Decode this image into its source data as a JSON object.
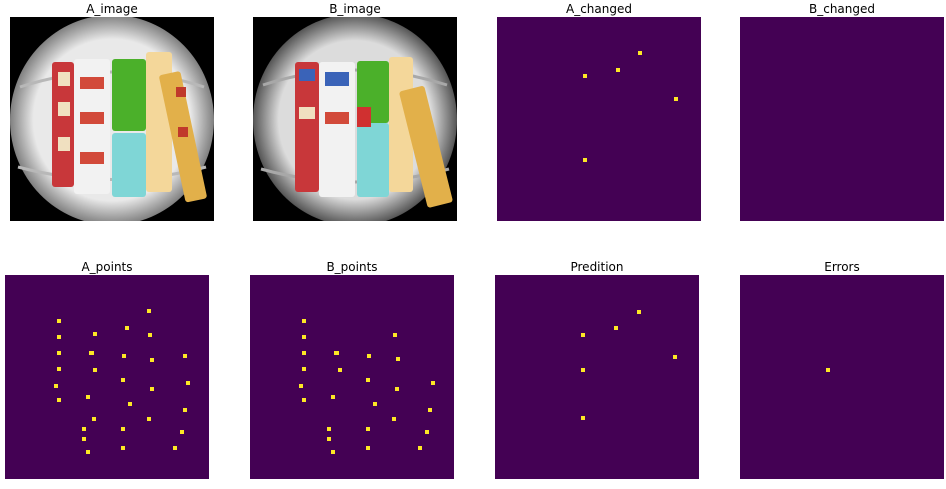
{
  "titles": {
    "a_image": "A_image",
    "b_image": "B_image",
    "a_changed": "A_changed",
    "b_changed": "B_changed",
    "a_points": "A_points",
    "b_points": "B_points",
    "prediction": "Predition",
    "errors": "Errors"
  },
  "colors": {
    "background": "#440154",
    "point": "#fde725",
    "figure_bg": "#ffffff"
  }
}
